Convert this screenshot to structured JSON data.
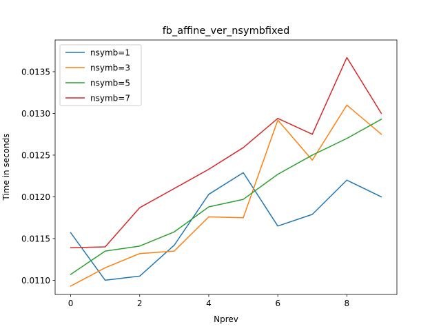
{
  "chart_data": {
    "type": "line",
    "title": "fb_affine_ver_nsymbfixed",
    "xlabel": "Nprev",
    "ylabel": "Time in seconds",
    "x": [
      0,
      1,
      2,
      3,
      4,
      5,
      6,
      7,
      8,
      9
    ],
    "xlim": [
      -0.45,
      9.45
    ],
    "ylim": [
      0.01083,
      0.01388
    ],
    "xticks": [
      0,
      2,
      4,
      6,
      8
    ],
    "xtick_labels": [
      "0",
      "2",
      "4",
      "6",
      "8"
    ],
    "yticks": [
      0.011,
      0.0115,
      0.012,
      0.0125,
      0.013,
      0.0135
    ],
    "ytick_labels": [
      "0.0110",
      "0.0115",
      "0.0120",
      "0.0125",
      "0.0130",
      "0.0135"
    ],
    "grid": false,
    "legend_position": "top-left",
    "series": [
      {
        "name": "nsymb=1",
        "color": "#1f77b4",
        "values": [
          0.01157,
          0.011,
          0.01105,
          0.01142,
          0.01203,
          0.01229,
          0.01165,
          0.01179,
          0.0122,
          0.012
        ]
      },
      {
        "name": "nsymb=3",
        "color": "#ff7f0e",
        "values": [
          0.01093,
          0.01115,
          0.01132,
          0.01135,
          0.01176,
          0.01175,
          0.01292,
          0.01244,
          0.0131,
          0.01275
        ]
      },
      {
        "name": "nsymb=5",
        "color": "#2ca02c",
        "values": [
          0.01107,
          0.01135,
          0.01141,
          0.01158,
          0.01188,
          0.01197,
          0.01227,
          0.0125,
          0.0127,
          0.01293
        ]
      },
      {
        "name": "nsymb=7",
        "color": "#d62728",
        "values": [
          0.01139,
          0.0114,
          0.01187,
          0.0121,
          0.01233,
          0.01259,
          0.01294,
          0.01275,
          0.01367,
          0.013
        ]
      }
    ]
  }
}
